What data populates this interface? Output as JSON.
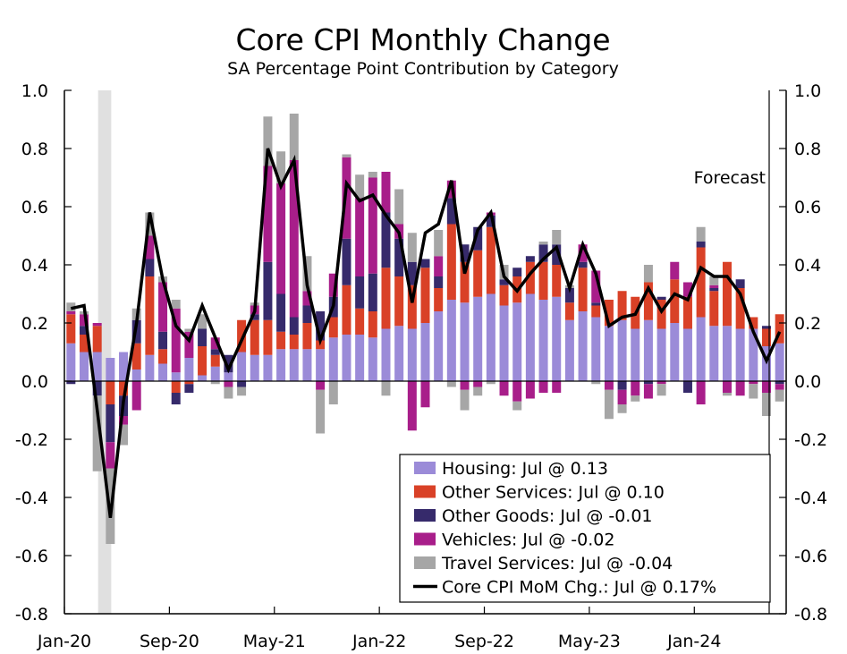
{
  "chart_data": {
    "type": "bar",
    "stacked": true,
    "title": "Core CPI Monthly Change",
    "subtitle": "SA Percentage Point Contribution by Category",
    "ylim": [
      -0.8,
      1.0
    ],
    "yticks": [
      "1.0",
      "0.8",
      "0.6",
      "0.4",
      "0.2",
      "0.0",
      "-0.2",
      "-0.4",
      "-0.6",
      "-0.8"
    ],
    "ytick_values": [
      1.0,
      0.8,
      0.6,
      0.4,
      0.2,
      0.0,
      -0.2,
      -0.4,
      -0.6,
      -0.8
    ],
    "secondary_y_axis": true,
    "grid": false,
    "legend_placement": "bottom-right",
    "xtick_labels": [
      "Jan-20",
      "Sep-20",
      "May-21",
      "Jan-22",
      "Sep-22",
      "May-23",
      "Jan-24"
    ],
    "categories": [
      "Jan-20",
      "Feb-20",
      "Mar-20",
      "Apr-20",
      "May-20",
      "Jun-20",
      "Jul-20",
      "Aug-20",
      "Sep-20",
      "Oct-20",
      "Nov-20",
      "Dec-20",
      "Jan-21",
      "Feb-21",
      "Mar-21",
      "Apr-21",
      "May-21",
      "Jun-21",
      "Jul-21",
      "Aug-21",
      "Sep-21",
      "Oct-21",
      "Nov-21",
      "Dec-21",
      "Jan-22",
      "Feb-22",
      "Mar-22",
      "Apr-22",
      "May-22",
      "Jun-22",
      "Jul-22",
      "Aug-22",
      "Sep-22",
      "Oct-22",
      "Nov-22",
      "Dec-22",
      "Jan-23",
      "Feb-23",
      "Mar-23",
      "Apr-23",
      "May-23",
      "Jun-23",
      "Jul-23",
      "Aug-23",
      "Sep-23",
      "Oct-23",
      "Nov-23",
      "Dec-23",
      "Jan-24",
      "Feb-24",
      "Mar-24",
      "Apr-24",
      "May-24",
      "Jun-24",
      "Jul-24"
    ],
    "recession_shading": {
      "start": "Mar-20",
      "end": "Apr-20",
      "color": "#e0e0e0"
    },
    "forecast": {
      "label": "Forecast",
      "start": "Jun-24"
    },
    "series": [
      {
        "name": "Housing",
        "legend": "Housing: Jul @ 0.13",
        "color": "#9b8bd8",
        "kind": "bar",
        "values": [
          0.13,
          0.1,
          0.1,
          0.08,
          0.1,
          0.04,
          0.09,
          0.06,
          0.03,
          0.08,
          0.02,
          0.05,
          0.03,
          0.1,
          0.09,
          0.09,
          0.11,
          0.11,
          0.11,
          0.11,
          0.15,
          0.16,
          0.16,
          0.15,
          0.18,
          0.19,
          0.18,
          0.2,
          0.24,
          0.28,
          0.27,
          0.29,
          0.3,
          0.26,
          0.27,
          0.3,
          0.28,
          0.29,
          0.21,
          0.24,
          0.22,
          0.19,
          0.21,
          0.18,
          0.21,
          0.18,
          0.2,
          0.18,
          0.22,
          0.19,
          0.19,
          0.18,
          0.18,
          0.12,
          0.13
        ]
      },
      {
        "name": "Other Services",
        "legend": "Other Services: Jul @ 0.10",
        "color": "#d94127",
        "kind": "bar",
        "values": [
          0.1,
          0.06,
          0.09,
          -0.08,
          -0.05,
          0.09,
          0.27,
          0.05,
          -0.04,
          -0.01,
          0.1,
          0.04,
          0.0,
          0.11,
          0.12,
          0.12,
          0.06,
          0.05,
          0.09,
          0.03,
          0.07,
          0.17,
          0.09,
          0.09,
          0.21,
          0.17,
          0.15,
          0.19,
          0.08,
          0.26,
          0.14,
          0.16,
          0.23,
          0.07,
          0.09,
          0.11,
          0.13,
          0.11,
          0.06,
          0.15,
          0.04,
          0.09,
          0.1,
          0.11,
          0.13,
          0.1,
          0.15,
          0.11,
          0.24,
          0.12,
          0.22,
          0.14,
          0.04,
          0.06,
          0.1
        ]
      },
      {
        "name": "Other Goods",
        "legend": "Other Goods: Jul @ -0.01",
        "color": "#362a6b",
        "kind": "bar",
        "values": [
          -0.01,
          0.03,
          -0.05,
          -0.13,
          -0.07,
          0.08,
          0.06,
          0.06,
          -0.04,
          -0.03,
          0.06,
          0.02,
          0.06,
          -0.02,
          0.02,
          0.2,
          0.13,
          0.06,
          0.06,
          0.1,
          0.07,
          0.16,
          0.11,
          0.13,
          0.19,
          0.13,
          0.08,
          0.03,
          0.04,
          0.09,
          0.06,
          0.08,
          0.04,
          0.02,
          0.03,
          0.02,
          0.06,
          0.07,
          0.05,
          0.02,
          0.01,
          0.0,
          -0.03,
          0.0,
          -0.01,
          0.01,
          0.0,
          -0.04,
          0.02,
          0.01,
          0.0,
          0.03,
          0.0,
          0.01,
          -0.01
        ]
      },
      {
        "name": "Vehicles",
        "legend": "Vehicles: Jul @ -0.02",
        "color": "#a81e8a",
        "kind": "bar",
        "values": [
          0.01,
          0.04,
          0.01,
          -0.09,
          -0.03,
          -0.1,
          0.08,
          0.17,
          0.22,
          0.09,
          0.0,
          0.04,
          -0.02,
          0.0,
          0.03,
          0.33,
          0.38,
          0.54,
          0.05,
          -0.03,
          0.08,
          0.28,
          0.27,
          0.33,
          0.14,
          0.05,
          -0.17,
          -0.09,
          0.07,
          0.06,
          -0.03,
          -0.02,
          0.01,
          -0.05,
          -0.07,
          -0.06,
          -0.04,
          -0.04,
          0.0,
          0.06,
          0.11,
          -0.03,
          -0.05,
          -0.05,
          -0.05,
          -0.01,
          0.06,
          0.05,
          -0.08,
          0.01,
          -0.04,
          -0.05,
          -0.01,
          -0.04,
          -0.02
        ]
      },
      {
        "name": "Travel Services",
        "legend": "Travel Services: Jul @ -0.04",
        "color": "#a6a6a6",
        "kind": "bar",
        "values": [
          0.03,
          0.01,
          -0.26,
          -0.26,
          -0.07,
          0.04,
          0.08,
          0.02,
          0.03,
          0.01,
          0.05,
          -0.01,
          -0.04,
          -0.03,
          0.01,
          0.17,
          0.11,
          0.16,
          0.12,
          -0.15,
          -0.08,
          0.01,
          0.08,
          0.02,
          -0.05,
          0.12,
          0.1,
          0.0,
          0.09,
          -0.02,
          -0.07,
          -0.03,
          -0.01,
          0.05,
          -0.03,
          0.0,
          0.01,
          0.05,
          0.01,
          0.0,
          -0.01,
          -0.1,
          -0.03,
          -0.02,
          0.06,
          -0.04,
          0.0,
          0.0,
          0.05,
          0.03,
          -0.01,
          0.0,
          -0.05,
          -0.08,
          -0.04
        ]
      },
      {
        "name": "Core CPI MoM Chg.",
        "legend": "Core CPI MoM Chg.: Jul @ 0.17%",
        "color": "#000000",
        "kind": "line",
        "values": [
          0.25,
          0.26,
          -0.1,
          -0.47,
          -0.07,
          0.2,
          0.58,
          0.35,
          0.19,
          0.14,
          0.26,
          0.15,
          0.04,
          0.14,
          0.24,
          0.8,
          0.67,
          0.76,
          0.33,
          0.14,
          0.26,
          0.68,
          0.62,
          0.64,
          0.57,
          0.51,
          0.27,
          0.51,
          0.54,
          0.69,
          0.37,
          0.52,
          0.58,
          0.36,
          0.31,
          0.37,
          0.42,
          0.46,
          0.32,
          0.47,
          0.37,
          0.19,
          0.22,
          0.23,
          0.32,
          0.24,
          0.3,
          0.28,
          0.39,
          0.36,
          0.36,
          0.3,
          0.17,
          0.07,
          0.17
        ]
      }
    ]
  }
}
